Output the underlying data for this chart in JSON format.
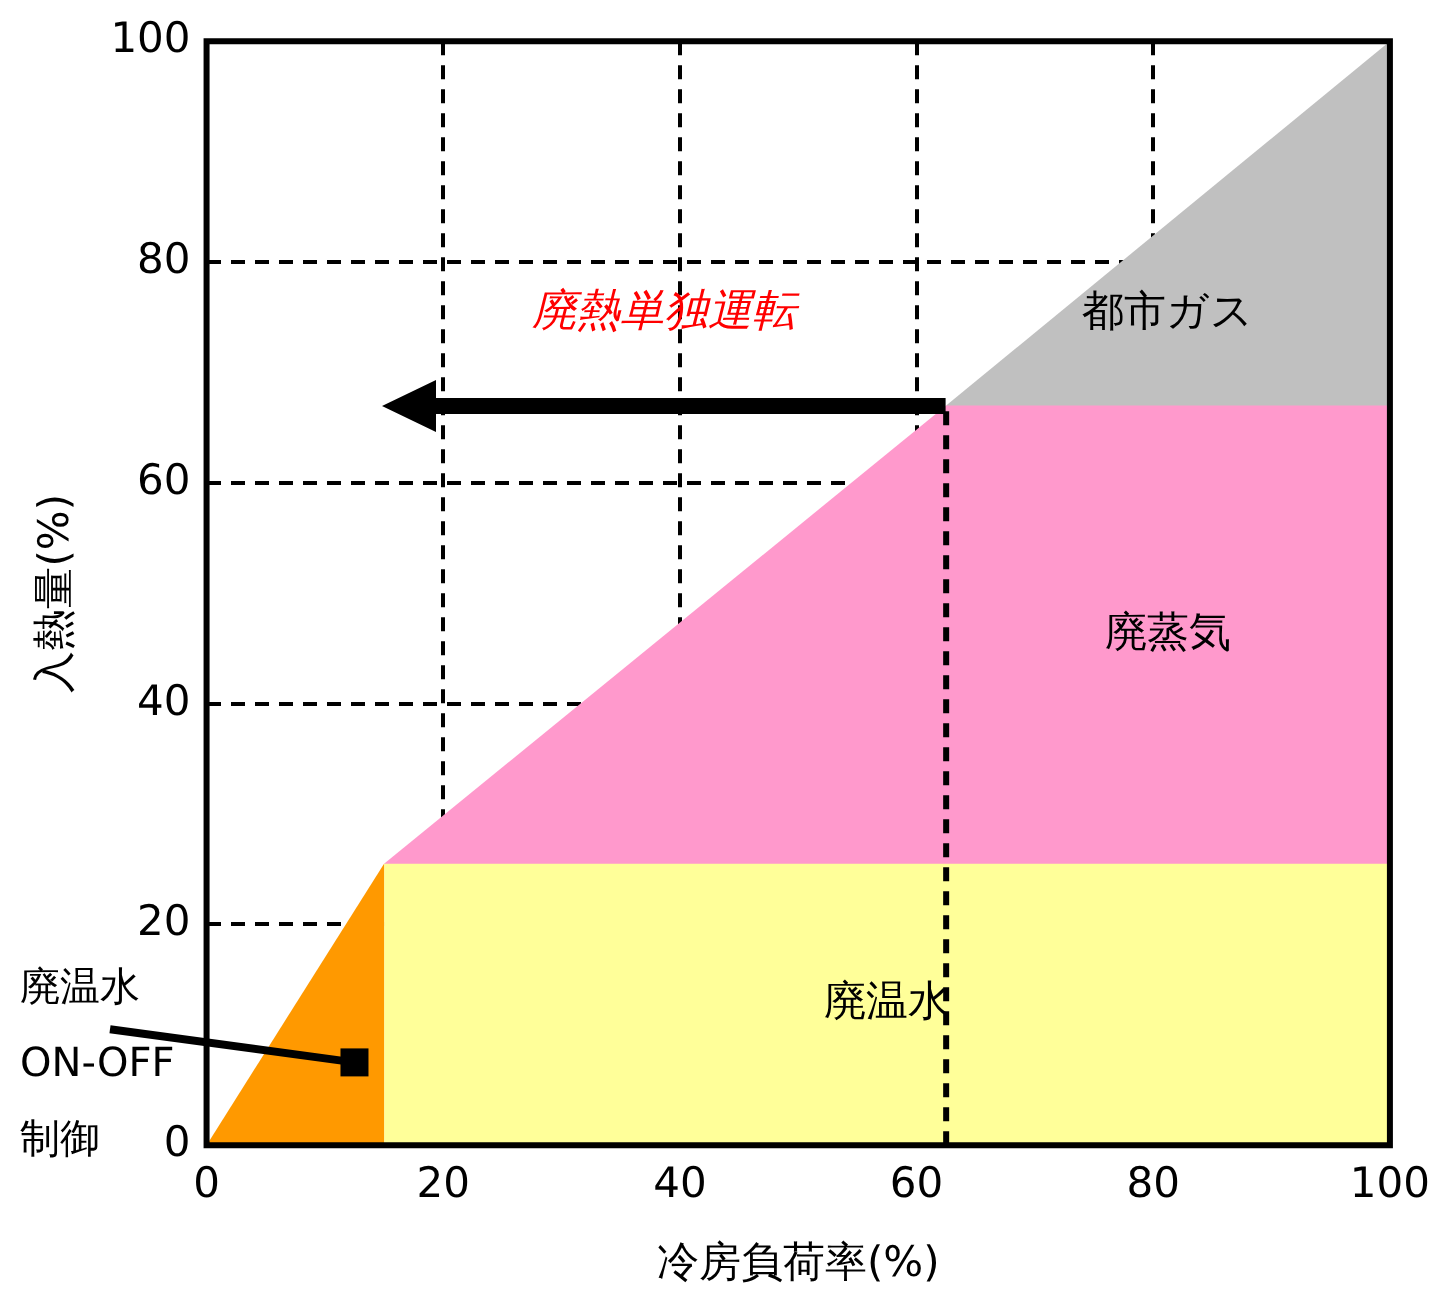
{
  "chart_data": {
    "type": "area",
    "xlabel": "冷房負荷率(%)",
    "ylabel": "入熱量(%)",
    "series": [
      {
        "name": "都市ガス",
        "color": "#c0c0c0",
        "x": [
          62.5,
          100
        ],
        "values": [
          67,
          100
        ]
      },
      {
        "name": "廃蒸気",
        "color": "#ff99cc",
        "x": [
          15,
          62.5,
          100
        ],
        "values": [
          25.5,
          67,
          67
        ]
      },
      {
        "name": "廃温水",
        "color": "#ffff99",
        "x": [
          15,
          100
        ],
        "values": [
          25.5,
          25.5
        ]
      },
      {
        "color": "#ff9900",
        "x": [
          0,
          15
        ],
        "values": [
          0,
          25.5
        ]
      }
    ],
    "xlim": [
      0,
      100
    ],
    "xticks": [
      0,
      20,
      40,
      60,
      80,
      100
    ],
    "ylim": [
      0,
      100
    ],
    "yticks": [
      0,
      20,
      40,
      60,
      80,
      100
    ],
    "grid": true,
    "line_style": "dashed",
    "ref_lines": [
      {
        "axis": "x",
        "value": 62.5,
        "line_style": "dashed",
        "color": "#000000"
      }
    ],
    "annotations": [
      "廃熱単独運転",
      {
        "text": "廃温水 ON-OFF 制御",
        "x": 12.5,
        "y": 7.5
      }
    ]
  }
}
